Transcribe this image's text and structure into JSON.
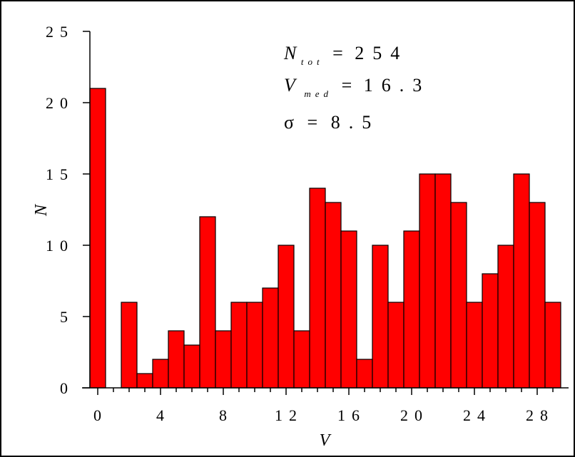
{
  "chart_data": {
    "type": "bar",
    "xlabel": "V",
    "ylabel": "N",
    "xlim": [
      -0.5,
      30
    ],
    "ylim": [
      0,
      25
    ],
    "bin_width": 1,
    "x_ticks": [
      0,
      4,
      8,
      12,
      16,
      20,
      24,
      28
    ],
    "y_ticks": [
      0,
      5,
      10,
      15,
      20,
      25
    ],
    "bar_color": "#ff0000",
    "bar_edge_color": "#000000",
    "x": [
      0,
      1,
      2,
      3,
      4,
      5,
      6,
      7,
      8,
      9,
      10,
      11,
      12,
      13,
      14,
      15,
      16,
      17,
      18,
      19,
      20,
      21,
      22,
      23,
      24,
      25,
      26,
      27,
      28,
      29
    ],
    "values": [
      21,
      0,
      6,
      1,
      2,
      4,
      3,
      12,
      4,
      6,
      6,
      7,
      10,
      4,
      14,
      13,
      11,
      2,
      10,
      6,
      11,
      15,
      15,
      13,
      6,
      8,
      10,
      15,
      13,
      6
    ],
    "annotations": {
      "ntot": {
        "symbol": "N",
        "sub": "tot",
        "eq": "=",
        "value": "254"
      },
      "vmed": {
        "symbol": "V",
        "sub": "med",
        "eq": "=",
        "value": "16.3"
      },
      "sigma": {
        "symbol": "σ",
        "eq": "=",
        "value": "8.5"
      }
    }
  }
}
